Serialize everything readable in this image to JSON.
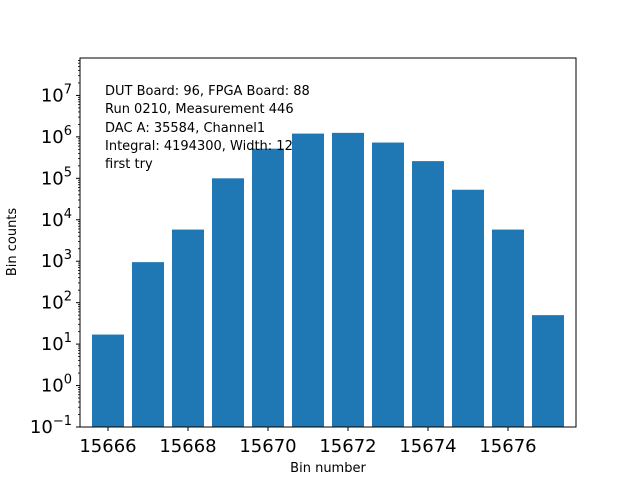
{
  "chart_data": {
    "type": "bar",
    "x": [
      15666,
      15667,
      15668,
      15669,
      15670,
      15671,
      15672,
      15673,
      15674,
      15675,
      15676,
      15677
    ],
    "values": [
      17,
      950,
      5800,
      100000,
      520000,
      1200000,
      1250000,
      730000,
      260000,
      53000,
      5800,
      50
    ],
    "bar_color": "#1f77b4",
    "xlabel": "Bin number",
    "ylabel": "Bin counts",
    "yscale": "log",
    "ylim": [
      0.1,
      80000000
    ],
    "xlim": [
      15665.3,
      15677.7
    ],
    "x_ticks": [
      15666,
      15668,
      15670,
      15672,
      15674,
      15676
    ],
    "x_tick_labels": [
      "15666",
      "15668",
      "15670",
      "15672",
      "15674",
      "15676"
    ],
    "y_tick_exponents": [
      "−1",
      "0",
      "1",
      "2",
      "3",
      "4",
      "5",
      "6",
      "7"
    ],
    "y_tick_base": "10",
    "grid": false,
    "annotations": [
      "DUT Board: 96, FPGA Board: 88",
      "Run 0210, Measurement 446",
      "DAC A: 35584, Channel1",
      "Integral: 4194300, Width: 12",
      "first try"
    ]
  }
}
